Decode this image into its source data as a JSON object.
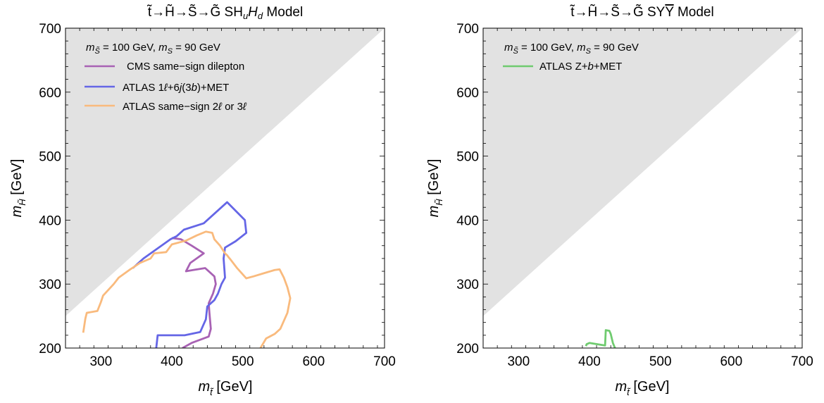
{
  "chart_data": [
    {
      "type": "line",
      "title": "t̃→H̃→S̃→G̃ SHᵤH_d Model",
      "title_parts": {
        "prefix": "t̃→H̃→S̃→G̃ SH",
        "sub1": "u",
        "mid": "H",
        "sub2": "d",
        "suffix": " Model"
      },
      "xlabel": "m_t̃ [GeV]",
      "ylabel": "m_H̃ [GeV]",
      "xlim": [
        250,
        700
      ],
      "ylim": [
        200,
        700
      ],
      "xticks": [
        300,
        400,
        500,
        600,
        700
      ],
      "yticks": [
        200,
        300,
        400,
        500,
        600,
        700
      ],
      "grid": false,
      "excluded_region": {
        "label": "",
        "boundary": [
          [
            250,
            250
          ],
          [
            700,
            700
          ]
        ],
        "color": "#e2e2e2"
      },
      "annotation": "m_S̃ = 100 GeV, m_S = 90 GeV",
      "legend_position": "top-left",
      "series": [
        {
          "name": "CMS same−sign dilepton",
          "color": "#a862b4",
          "x": [
            415,
            428,
            440,
            452,
            455,
            453,
            452,
            458,
            462,
            460,
            447,
            430,
            420,
            426,
            445,
            428,
            413,
            400
          ],
          "y": [
            200,
            208,
            213,
            218,
            230,
            255,
            270,
            285,
            300,
            312,
            325,
            322,
            320,
            333,
            348,
            360,
            370,
            372
          ]
        },
        {
          "name": "ATLAS 1ℓ+6j(3b)+MET",
          "color": "#6566e6",
          "x": [
            378,
            380,
            418,
            440,
            448,
            450,
            460,
            465,
            470,
            475,
            473,
            475,
            490,
            505,
            503,
            478,
            445,
            417,
            407,
            398,
            360,
            345
          ],
          "y": [
            200,
            220,
            220,
            225,
            245,
            265,
            275,
            285,
            300,
            310,
            340,
            357,
            367,
            380,
            400,
            428,
            395,
            385,
            375,
            370,
            340,
            325
          ]
        },
        {
          "name": "ATLAS same−sign 2ℓ or 3ℓ",
          "color": "#f9ba7d",
          "x": [
            525,
            533,
            545,
            553,
            563,
            567,
            563,
            558,
            552,
            545,
            530,
            515,
            505,
            492,
            483,
            480,
            478,
            475,
            468,
            460,
            457,
            448,
            435,
            420,
            400,
            392,
            375,
            370,
            355,
            340,
            325,
            318,
            303,
            300,
            295,
            280,
            278,
            275
          ],
          "y": [
            200,
            215,
            222,
            230,
            255,
            278,
            295,
            310,
            323,
            322,
            317,
            312,
            309,
            325,
            338,
            342,
            345,
            348,
            360,
            370,
            380,
            382,
            376,
            368,
            362,
            350,
            348,
            340,
            333,
            322,
            310,
            300,
            282,
            272,
            258,
            255,
            246,
            224
          ]
        }
      ]
    },
    {
      "type": "line",
      "title": "t̃→H̃→S̃→G̃ SYȲ Model",
      "title_parts": {
        "prefix": "t̃→H̃→S̃→G̃ SY",
        "overline": "Y",
        "suffix": " Model"
      },
      "xlabel": "m_t̃ [GeV]",
      "ylabel": "m_H̃ [GeV]",
      "xlim": [
        250,
        700
      ],
      "ylim": [
        200,
        700
      ],
      "xticks": [
        300,
        400,
        500,
        600,
        700
      ],
      "yticks": [
        200,
        300,
        400,
        500,
        600,
        700
      ],
      "grid": false,
      "excluded_region": {
        "label": "",
        "boundary": [
          [
            250,
            250
          ],
          [
            700,
            700
          ]
        ],
        "color": "#e2e2e2"
      },
      "annotation": "m_S̃ = 100 GeV, m_S = 90 GeV",
      "legend_position": "top-left",
      "series": [
        {
          "name": "ATLAS Z+b+MET",
          "color": "#6fcb6f",
          "x": [
            395,
            396,
            400,
            422,
            423,
            428,
            430,
            433,
            436
          ],
          "y": [
            203,
            206,
            208,
            204,
            228,
            227,
            222,
            208,
            200
          ]
        }
      ]
    }
  ]
}
